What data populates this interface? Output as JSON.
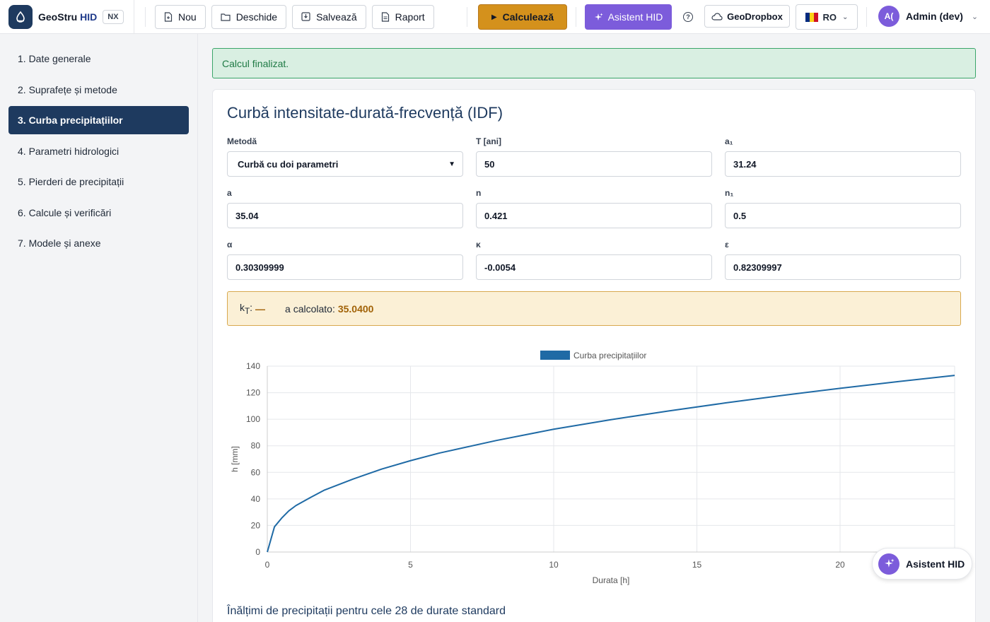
{
  "app": {
    "name_prefix": "GeoStru",
    "name_suffix": "HID",
    "badge": "NX"
  },
  "toolbar": {
    "new_label": "Nou",
    "open_label": "Deschide",
    "save_label": "Salvează",
    "report_label": "Raport",
    "calculate_label": "Calculează",
    "assistant_label": "Asistent HID",
    "dropbox_label": "GeoDropbox",
    "language_label": "RO",
    "user_initials": "A(",
    "user_name": "Admin (dev)"
  },
  "sidebar": {
    "items": [
      {
        "label": "1. Date generale"
      },
      {
        "label": "2. Suprafețe și metode"
      },
      {
        "label": "3. Curba precipitațiilor"
      },
      {
        "label": "4. Parametri hidrologici"
      },
      {
        "label": "5. Pierderi de precipitații"
      },
      {
        "label": "6. Calcule și verificări"
      },
      {
        "label": "7. Modele și anexe"
      }
    ],
    "active_index": 2
  },
  "alert": {
    "text": "Calcul finalizat."
  },
  "card": {
    "title": "Curbă intensitate-durată-frecvență (IDF)",
    "fields": {
      "method": {
        "label": "Metodă",
        "value": "Curbă cu doi parametri"
      },
      "T": {
        "label": "T [ani]",
        "value": "50"
      },
      "a1": {
        "label": "a₁",
        "value": "31.24"
      },
      "a": {
        "label": "a",
        "value": "35.04"
      },
      "n": {
        "label": "n",
        "value": "0.421"
      },
      "n1": {
        "label": "n₁",
        "value": "0.5"
      },
      "alpha": {
        "label": "α",
        "value": "0.30309999"
      },
      "kappa": {
        "label": "κ",
        "value": "-0.0054"
      },
      "epsilon": {
        "label": "ε",
        "value": "0.82309997"
      }
    },
    "info": {
      "kt_label": "k",
      "kt_sub": "T",
      "kt_value": "—",
      "a_calc_label": "a calcolato:",
      "a_calc_value": "35.0400"
    },
    "section_title": "Înălțimi de precipitații pentru cele 28 de durate standard"
  },
  "floating_button": {
    "label": "Asistent HID"
  },
  "colors": {
    "primary": "#1e3a5f",
    "accent_orange": "#d4911c",
    "accent_purple": "#7c5cdb",
    "success_bg": "#d9efe2",
    "warning_bg": "#fbf0d6",
    "series_line": "#1f6aa5"
  },
  "chart_data": {
    "type": "line",
    "legend": [
      "Curba precipitațiilor"
    ],
    "legend_position": "top-center",
    "xlabel": "Durata [h]",
    "ylabel": "h [mm]",
    "xlim": [
      0,
      24
    ],
    "ylim": [
      0,
      140
    ],
    "x_ticks": [
      0,
      5,
      10,
      15,
      20
    ],
    "y_ticks": [
      0,
      20,
      40,
      60,
      80,
      100,
      120,
      140
    ],
    "grid": true,
    "series": [
      {
        "name": "Curba precipitațiilor",
        "x": [
          0,
          0.25,
          0.5,
          0.75,
          1,
          1.5,
          2,
          3,
          4,
          5,
          6,
          8,
          10,
          12,
          14,
          16,
          18,
          20,
          22,
          24
        ],
        "values": [
          0,
          19.0,
          25.5,
          31.0,
          35.0,
          41.0,
          46.7,
          55.0,
          62.5,
          68.8,
          74.5,
          84.0,
          92.5,
          99.7,
          106.2,
          112.3,
          118.0,
          123.3,
          128.3,
          133.0
        ]
      }
    ]
  }
}
